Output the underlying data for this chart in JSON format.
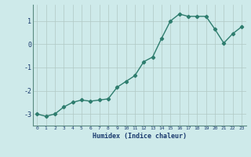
{
  "x": [
    0,
    1,
    2,
    3,
    4,
    5,
    6,
    7,
    8,
    9,
    10,
    11,
    12,
    13,
    14,
    15,
    16,
    17,
    18,
    19,
    20,
    21,
    22,
    23
  ],
  "y": [
    -3.0,
    -3.1,
    -3.0,
    -2.7,
    -2.5,
    -2.4,
    -2.45,
    -2.4,
    -2.35,
    -1.85,
    -1.6,
    -1.35,
    -0.75,
    -0.55,
    0.25,
    1.0,
    1.3,
    1.2,
    1.2,
    1.2,
    0.65,
    0.05,
    0.45,
    0.75
  ],
  "line_color": "#2e7d6e",
  "marker": "D",
  "marker_size": 2.2,
  "bg_color": "#ceeaea",
  "grid_color": "#b0c8c4",
  "xlabel": "Humidex (Indice chaleur)",
  "xlabel_color": "#1a3a6e",
  "tick_color": "#1a3a6e",
  "xlim": [
    -0.5,
    23.5
  ],
  "ylim": [
    -3.5,
    1.7
  ],
  "yticks": [
    -3,
    -2,
    -1,
    0,
    1
  ],
  "xticks": [
    0,
    1,
    2,
    3,
    4,
    5,
    6,
    7,
    8,
    9,
    10,
    11,
    12,
    13,
    14,
    15,
    16,
    17,
    18,
    19,
    20,
    21,
    22,
    23
  ],
  "line_width": 1.0,
  "figsize": [
    3.2,
    2.0
  ],
  "dpi": 100
}
